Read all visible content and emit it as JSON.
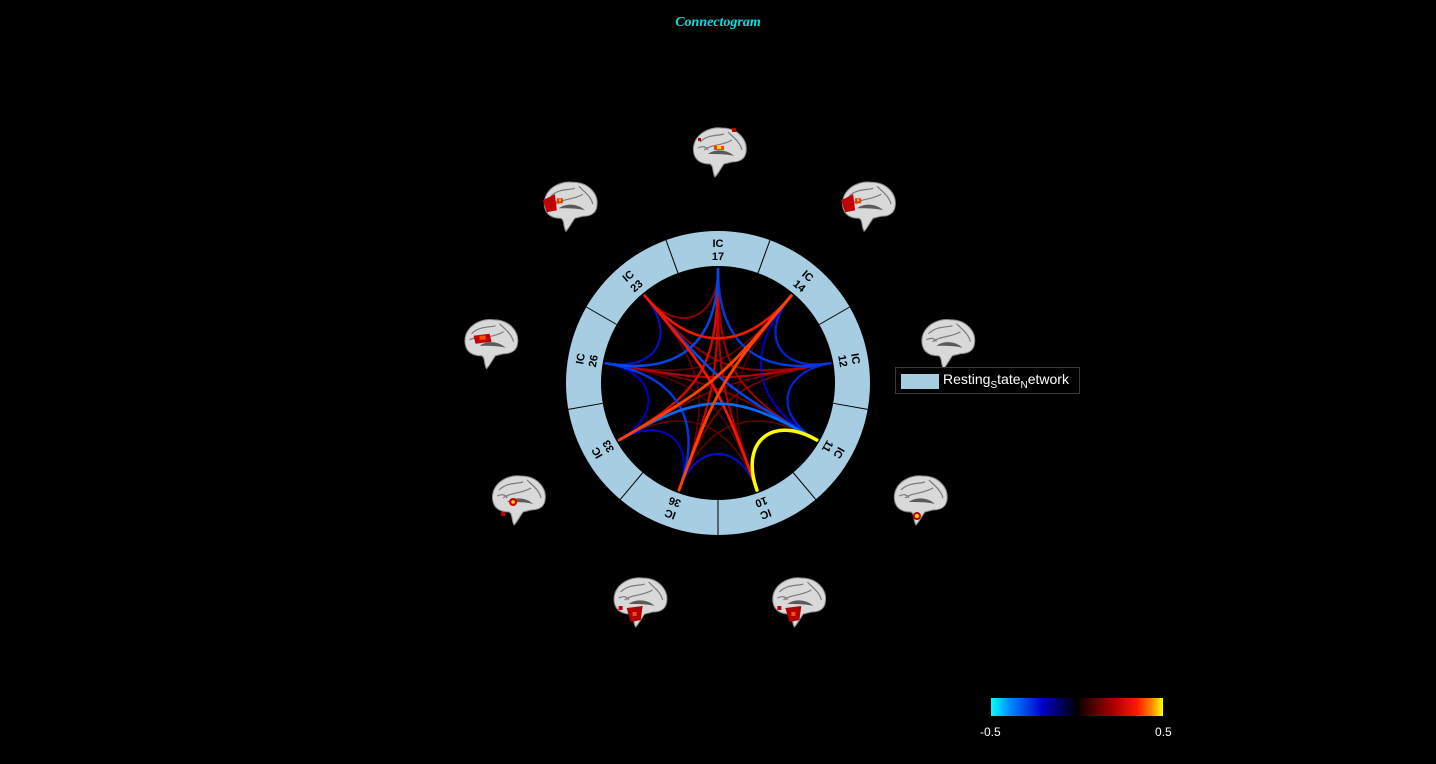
{
  "title": "Connectogram",
  "ring_color": "#a6cde1",
  "nodes": [
    {
      "id": "17",
      "prefix": "IC",
      "brain_shape": "red-dots"
    },
    {
      "id": "14",
      "prefix": "IC",
      "brain_shape": "red-left"
    },
    {
      "id": "12",
      "prefix": "IC",
      "brain_shape": "clean"
    },
    {
      "id": "11",
      "prefix": "IC",
      "brain_shape": "blob-bottom"
    },
    {
      "id": "10",
      "prefix": "IC",
      "brain_shape": "red-bottom"
    },
    {
      "id": "36",
      "prefix": "IC",
      "brain_shape": "red-bottom"
    },
    {
      "id": "33",
      "prefix": "IC",
      "brain_shape": "blob-center"
    },
    {
      "id": "26",
      "prefix": "IC",
      "brain_shape": "red-center"
    },
    {
      "id": "23",
      "prefix": "IC",
      "brain_shape": "red-left"
    }
  ],
  "connections": [
    {
      "a": "11",
      "b": "10",
      "value": 0.5
    },
    {
      "a": "14",
      "b": "33",
      "value": 0.38
    },
    {
      "a": "14",
      "b": "36",
      "value": 0.38
    },
    {
      "a": "14",
      "b": "23",
      "value": 0.33
    },
    {
      "a": "23",
      "b": "10",
      "value": 0.33
    },
    {
      "a": "17",
      "b": "33",
      "value": 0.28
    },
    {
      "a": "17",
      "b": "36",
      "value": 0.25
    },
    {
      "a": "17",
      "b": "10",
      "value": 0.22
    },
    {
      "a": "17",
      "b": "11",
      "value": 0.2
    },
    {
      "a": "17",
      "b": "23",
      "value": 0.18
    },
    {
      "a": "12",
      "b": "26",
      "value": 0.22
    },
    {
      "a": "12",
      "b": "23",
      "value": 0.18
    },
    {
      "a": "26",
      "b": "11",
      "value": 0.15
    },
    {
      "a": "26",
      "b": "14",
      "value": 0.12
    },
    {
      "a": "33",
      "b": "12",
      "value": 0.14
    },
    {
      "a": "36",
      "b": "12",
      "value": 0.15
    },
    {
      "a": "10",
      "b": "33",
      "value": 0.12
    },
    {
      "a": "36",
      "b": "11",
      "value": 0.12
    },
    {
      "a": "14",
      "b": "10",
      "value": 0.1
    },
    {
      "a": "23",
      "b": "36",
      "value": 0.12
    },
    {
      "a": "26",
      "b": "10",
      "value": 0.1
    },
    {
      "a": "33",
      "b": "11",
      "value": -0.35
    },
    {
      "a": "26",
      "b": "17",
      "value": -0.3
    },
    {
      "a": "17",
      "b": "12",
      "value": -0.28
    },
    {
      "a": "14",
      "b": "12",
      "value": -0.25
    },
    {
      "a": "23",
      "b": "11",
      "value": -0.3
    },
    {
      "a": "26",
      "b": "36",
      "value": -0.28
    },
    {
      "a": "36",
      "b": "10",
      "value": -0.22
    },
    {
      "a": "33",
      "b": "26",
      "value": -0.2
    },
    {
      "a": "23",
      "b": "26",
      "value": -0.22
    },
    {
      "a": "12",
      "b": "11",
      "value": -0.25
    },
    {
      "a": "14",
      "b": "11",
      "value": -0.2
    },
    {
      "a": "33",
      "b": "36",
      "value": -0.2
    }
  ],
  "legend": {
    "label": "Resting",
    "sub1": "S",
    "mid": "tate",
    "sub2": "N",
    "end": "etwork"
  },
  "colorbar": {
    "min_label": "-0.5",
    "max_label": "0.5",
    "min": -0.5,
    "max": 0.5
  }
}
